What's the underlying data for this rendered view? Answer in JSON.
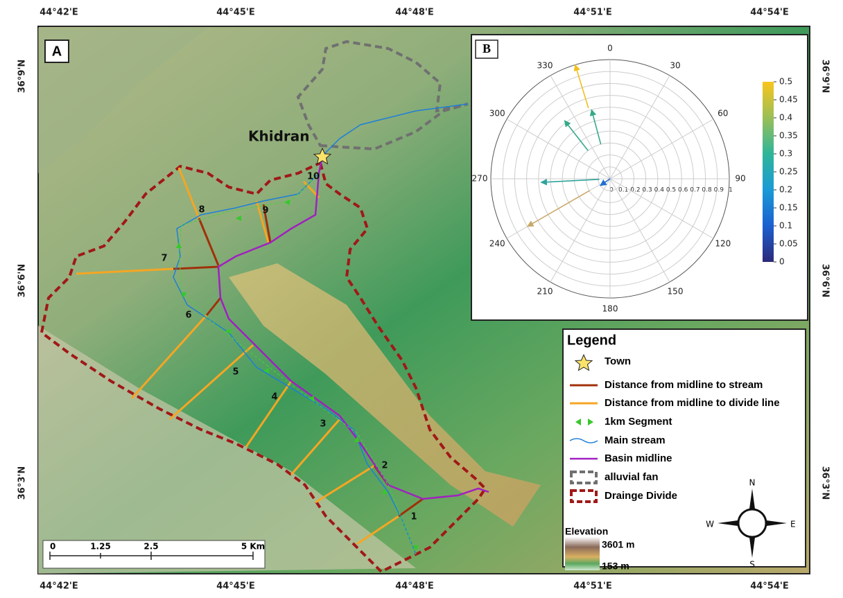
{
  "map": {
    "panel_label": "A",
    "top_labels": [
      "44°42'E",
      "44°45'E",
      "44°48'E",
      "44°51'E",
      "44°54'E"
    ],
    "left_labels": [
      "36°9'N",
      "36°6'N",
      "36°3'N"
    ],
    "town": "Khidran",
    "segment_labels": [
      "1",
      "2",
      "3",
      "4",
      "5",
      "6",
      "7",
      "8",
      "9",
      "10"
    ],
    "scale_labels": [
      "0",
      "1.25",
      "2.5",
      "5 Km"
    ],
    "compass": {
      "n": "N",
      "s": "S",
      "e": "E",
      "w": "W"
    },
    "legend": {
      "title": "Legend",
      "items": [
        "Town",
        "Distance from midline to stream",
        "Distance from midline to divide line",
        "1km Segment",
        "Main stream",
        "Basin midline",
        "alluvial fan",
        "Drainge Divide"
      ],
      "elevation_title": "Elevation",
      "elevation_high": "3601 m",
      "elevation_low": "153 m"
    }
  },
  "chart_data": {
    "type": "polar-vector",
    "panel_label": "B",
    "angle_ticks": [
      0,
      30,
      60,
      90,
      120,
      150,
      180,
      210,
      240,
      270,
      300,
      330
    ],
    "radial_ticks": [
      0,
      0.1,
      0.2,
      0.3,
      0.4,
      0.5,
      0.6,
      0.7,
      0.8,
      0.9,
      1
    ],
    "rlim": [
      0,
      1
    ],
    "vectors": [
      {
        "angle": 343,
        "r_start": 0.62,
        "r_end": 1.0,
        "color": "#f2bf1f"
      },
      {
        "angle": 345,
        "r_start": 0.3,
        "r_end": 0.6,
        "color": "#35a98a"
      },
      {
        "angle": 322,
        "r_start": 0.3,
        "r_end": 0.62,
        "color": "#35a98a"
      },
      {
        "angle": 267,
        "r_start": 0.09,
        "r_end": 0.58,
        "color": "#2fa39a"
      },
      {
        "angle": 240,
        "r_start": 0.2,
        "r_end": 0.8,
        "color": "#c9a86a"
      },
      {
        "angle": 235,
        "r_start": 0.0,
        "r_end": 0.1,
        "color": "#1f6fd1"
      }
    ],
    "colorbar": {
      "lim": [
        0,
        0.5
      ],
      "ticks": [
        0,
        0.05,
        0.1,
        0.15,
        0.2,
        0.25,
        0.3,
        0.35,
        0.4,
        0.45,
        0.5
      ]
    }
  }
}
